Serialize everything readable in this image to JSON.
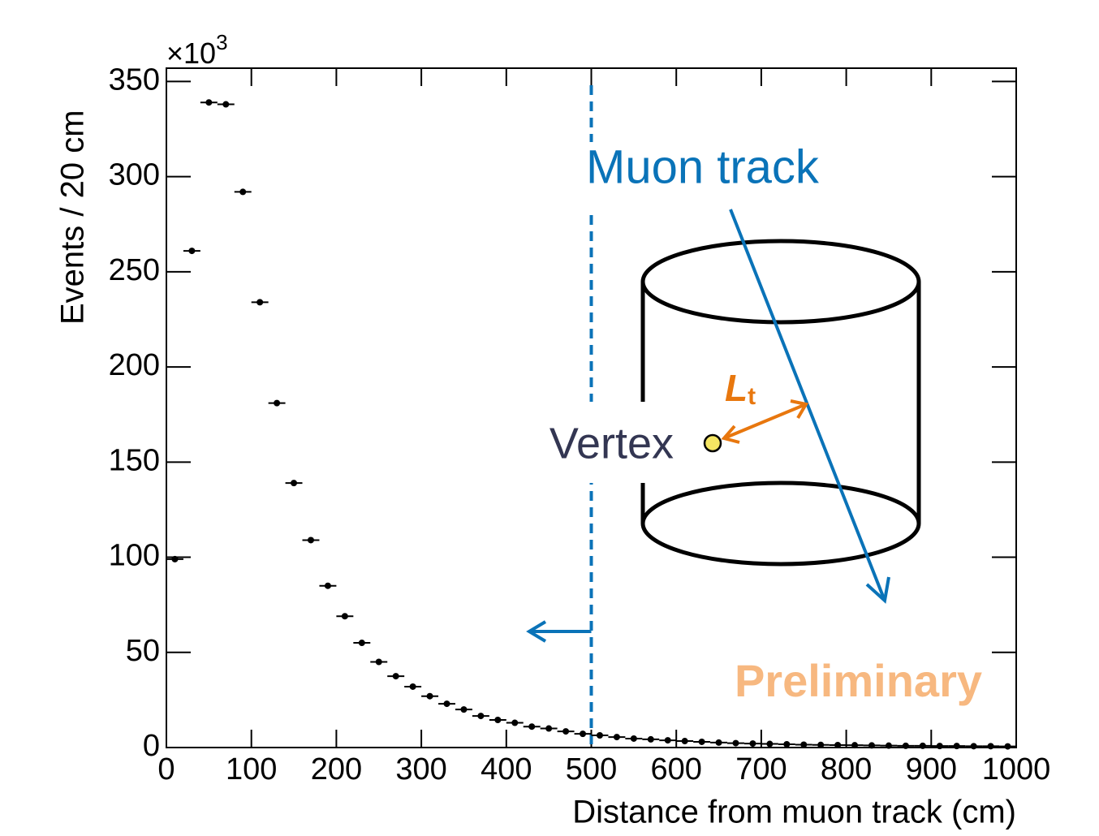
{
  "chart_data": {
    "type": "histogram",
    "x_label": "Distance from muon track (cm)",
    "y_label": "Events / 20 cm",
    "y_scale_label": {
      "base": "×10",
      "exponent": "3"
    },
    "bins": [
      0,
      20,
      40,
      60,
      80,
      100,
      120,
      140,
      160,
      180,
      200,
      220,
      240,
      260,
      280,
      300,
      320,
      340,
      360,
      380,
      400,
      420,
      440,
      460,
      480,
      500,
      520,
      540,
      560,
      580,
      600,
      620,
      640,
      660,
      680,
      700,
      720,
      740,
      760,
      780,
      800,
      820,
      840,
      860,
      880,
      900,
      920,
      940,
      960,
      980,
      1000
    ],
    "values": [
      99,
      261,
      339,
      338,
      292,
      234,
      181,
      139,
      109,
      85,
      69,
      55,
      45,
      37.5,
      32,
      27,
      23,
      20,
      16.6,
      14.5,
      13,
      11,
      10,
      8.5,
      7.2,
      6.4,
      5.5,
      4.7,
      4.3,
      3.8,
      3.4,
      3.0,
      2.6,
      2.3,
      2.1,
      1.9,
      1.7,
      1.5,
      1.4,
      1.3,
      1.2,
      1.1,
      1.0,
      0.9,
      0.9,
      0.8,
      0.8,
      0.7,
      0.7,
      0.6
    ],
    "color": "#000000",
    "xlim": [
      0,
      1000
    ],
    "ylim": [
      0,
      357
    ],
    "xticks": [
      0,
      100,
      200,
      300,
      400,
      500,
      600,
      700,
      800,
      900,
      1000
    ],
    "yticks": [
      0,
      50,
      100,
      150,
      200,
      250,
      300,
      350
    ],
    "grid": false,
    "cut_line": 500,
    "cut_color": "#0a73b8",
    "annotations": {
      "muon": "Muon track",
      "vertex": "Vertex",
      "lt": {
        "base": "L",
        "sub": "t"
      },
      "preliminary": "Preliminary"
    }
  }
}
